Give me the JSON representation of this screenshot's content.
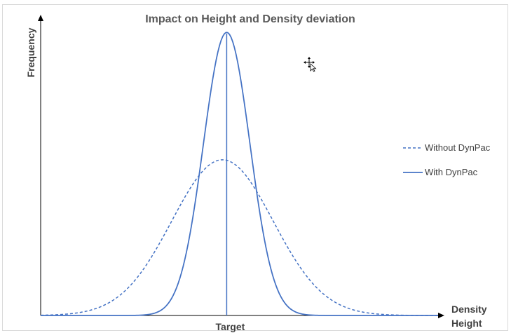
{
  "chart_data": {
    "type": "line",
    "title": "Impact on Height and Density deviation",
    "ylabel": "Frequency",
    "xlabel_lines": [
      "Density",
      "Height"
    ],
    "target_label": "Target",
    "target_x": 0,
    "xlim": [
      -4.4,
      5.0
    ],
    "ylim": [
      0,
      1.04
    ],
    "grid": false,
    "legend_position": "right",
    "series": [
      {
        "name": "Without DynPac",
        "style": "dashed",
        "mean": -0.1,
        "sd": 1.2,
        "peak": 0.55,
        "color": "#4472c4"
      },
      {
        "name": "With DynPac",
        "style": "solid",
        "mean": 0.0,
        "sd": 0.55,
        "peak": 1.0,
        "color": "#4472c4"
      }
    ],
    "colors": {
      "axis": "#000000",
      "target_line": "#4472c4"
    }
  },
  "cursor": {
    "icon": "move-cursor-icon"
  }
}
